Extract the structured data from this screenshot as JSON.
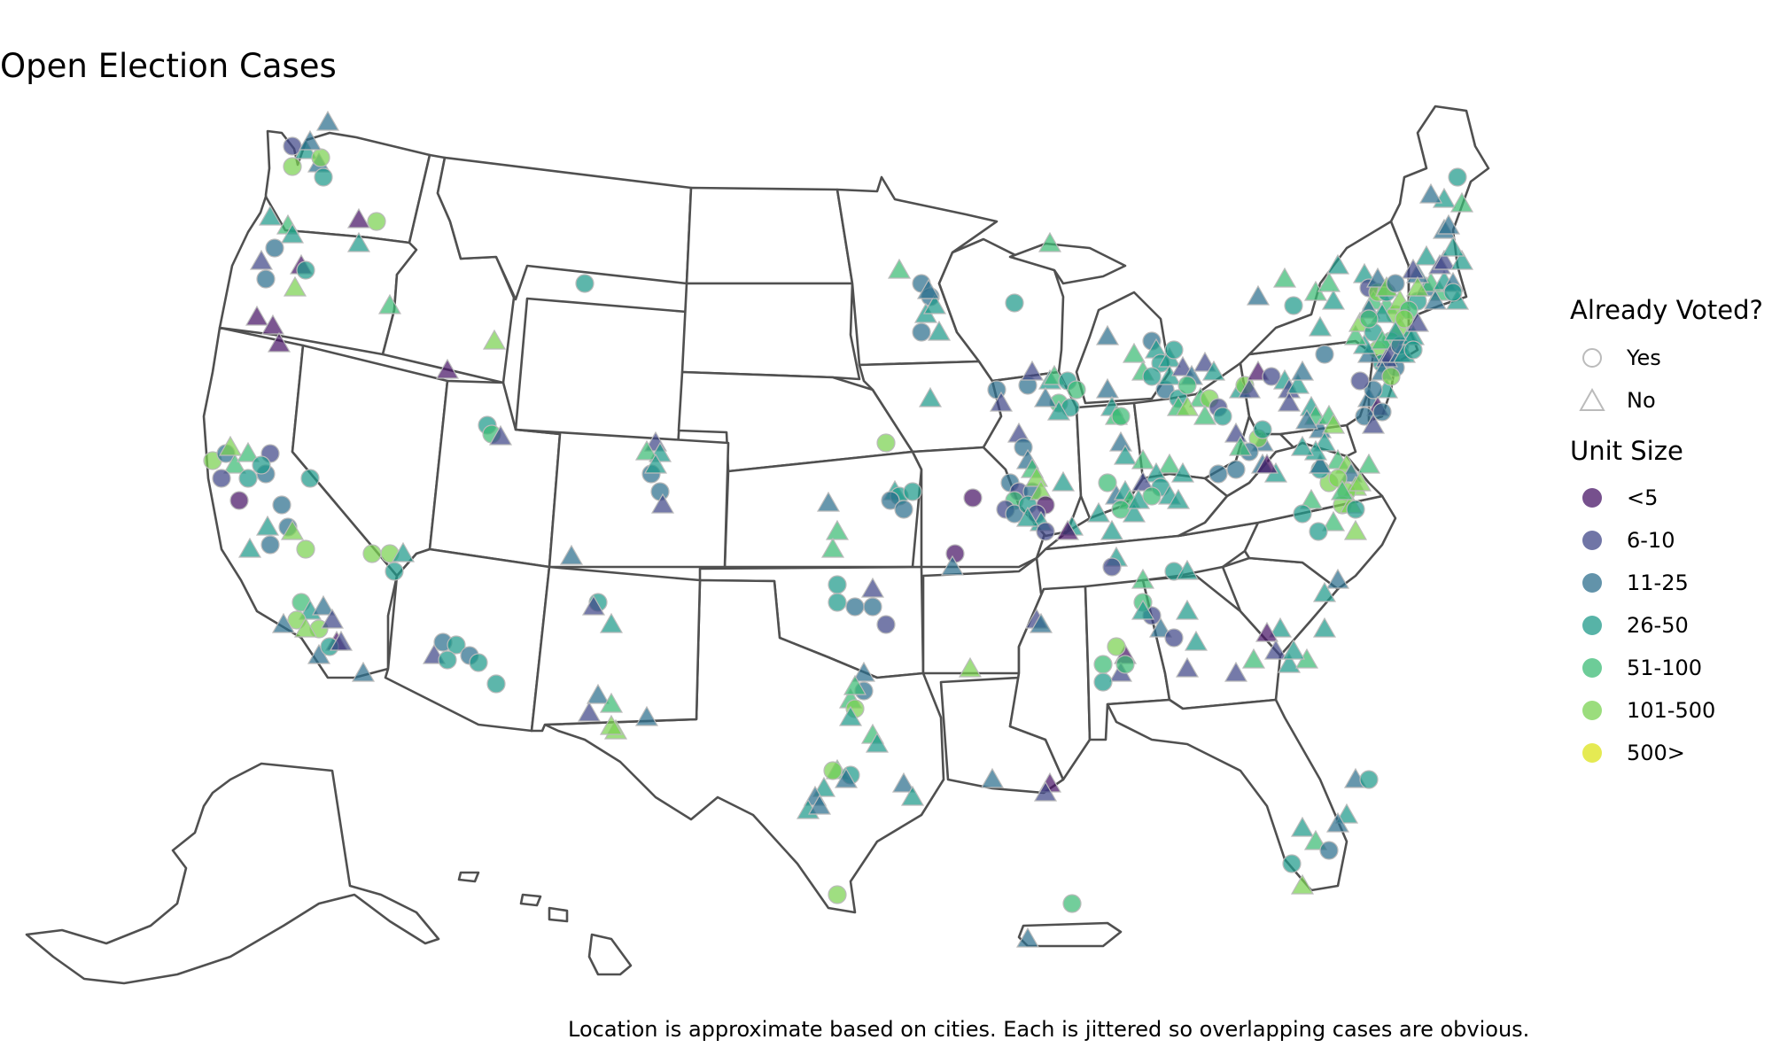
{
  "title": "Open Election Cases",
  "caption": "Location is approximate based on cities. Each is jittered so overlapping cases are obvious.",
  "legend": {
    "voted_title": "Already Voted?",
    "voted": [
      {
        "label": "Yes",
        "shape": "circle"
      },
      {
        "label": "No",
        "shape": "triangle"
      }
    ],
    "size_title": "Unit Size",
    "sizes": [
      {
        "label": "<5",
        "color": "#481567"
      },
      {
        "label": "6-10",
        "color": "#404788"
      },
      {
        "label": "11-25",
        "color": "#2d6f8e"
      },
      {
        "label": "26-50",
        "color": "#1f9a8a"
      },
      {
        "label": "51-100",
        "color": "#3cbb75"
      },
      {
        "label": "101-500",
        "color": "#7ad151"
      },
      {
        "label": "500>",
        "color": "#dce319"
      }
    ]
  }
}
